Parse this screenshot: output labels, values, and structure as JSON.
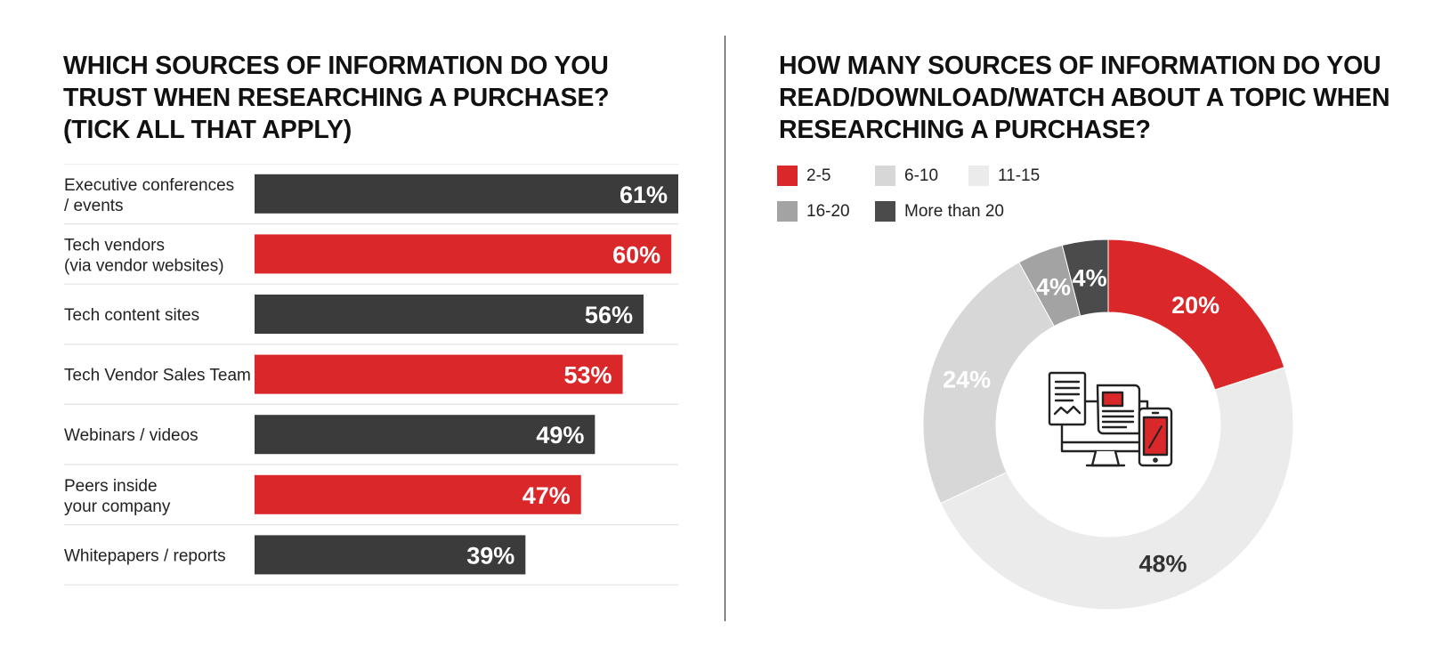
{
  "left_title": "WHICH SOURCES OF INFORMATION DO YOU\nTRUST WHEN RESEARCHING A PURCHASE?\n(TICK ALL THAT APPLY)",
  "right_title": "HOW MANY SOURCES OF INFORMATION DO YOU\nREAD/DOWNLOAD/WATCH ABOUT A TOPIC WHEN\nRESEARCHING A PURCHASE?",
  "colors": {
    "red": "#d9272a",
    "dark": "#3b3b3b",
    "light_gray": "#d7d7d7",
    "lighter_gray": "#ebebeb",
    "mid_gray": "#a3a3a3",
    "darker_gray": "#4b4b4b"
  },
  "chart_data": [
    {
      "type": "bar",
      "orientation": "horizontal",
      "categories": [
        [
          "Executive conferences",
          "/ events"
        ],
        [
          "Tech vendors",
          "(via vendor websites)"
        ],
        [
          "Tech content sites"
        ],
        [
          "Tech Vendor Sales Team"
        ],
        [
          "Webinars / videos"
        ],
        [
          "Peers inside",
          "your company"
        ],
        [
          "Whitepapers / reports"
        ]
      ],
      "values": [
        61,
        60,
        56,
        53,
        49,
        47,
        39
      ],
      "value_labels": [
        "61%",
        "60%",
        "56%",
        "53%",
        "49%",
        "47%",
        "39%"
      ],
      "bar_colors": [
        "#3b3b3b",
        "#d9272a",
        "#3b3b3b",
        "#d9272a",
        "#3b3b3b",
        "#d9272a",
        "#3b3b3b"
      ],
      "xlim": [
        0,
        61
      ]
    },
    {
      "type": "pie",
      "style": "donut",
      "labels": [
        "2-5",
        "6-10",
        "11-15",
        "16-20",
        "More than 20"
      ],
      "values": [
        20,
        24,
        48,
        4,
        4
      ],
      "value_labels": [
        "20%",
        "24%",
        "48%",
        "4%",
        "4%"
      ],
      "slice_colors": [
        "#d9272a",
        "#d7d7d7",
        "#ebebeb",
        "#a3a3a3",
        "#4b4b4b"
      ],
      "label_colors": [
        "#ffffff",
        "#ffffff",
        "#333333",
        "#ffffff",
        "#ffffff"
      ],
      "draw_order": [
        0,
        2,
        1,
        3,
        4
      ],
      "legend_placement": "top-left",
      "center_icon": "devices-icon"
    }
  ]
}
